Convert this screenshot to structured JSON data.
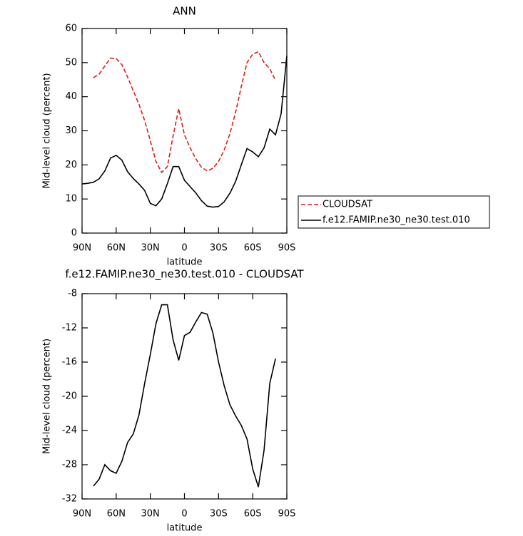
{
  "chart_data": [
    {
      "type": "line",
      "title": "ANN",
      "xlabel": "latitude",
      "ylabel": "Mid-level cloud (percent)",
      "x": [
        90,
        85,
        80,
        75,
        70,
        65,
        60,
        55,
        50,
        45,
        40,
        35,
        30,
        25,
        20,
        15,
        10,
        5,
        0,
        -5,
        -10,
        -15,
        -20,
        -25,
        -30,
        -35,
        -40,
        -45,
        -50,
        -55,
        -60,
        -65,
        -70,
        -75,
        -80,
        -85,
        -90
      ],
      "xlim": [
        90,
        -90
      ],
      "xticks": [
        {
          "value": 90,
          "label": "90N"
        },
        {
          "value": 60,
          "label": "60N"
        },
        {
          "value": 30,
          "label": "30N"
        },
        0,
        {
          "value": -30,
          "label": "30S"
        },
        {
          "value": -60,
          "label": "60S"
        },
        {
          "value": -90,
          "label": "90S"
        }
      ],
      "ylim": [
        0,
        60
      ],
      "yticks": [
        0,
        10,
        20,
        30,
        40,
        50,
        60
      ],
      "legend": "right",
      "series": [
        {
          "name": "CLOUDSAT",
          "color": "#e41a1c",
          "dashed": true,
          "values": [
            null,
            null,
            45.6,
            46.6,
            49,
            51.3,
            51.2,
            49.4,
            45.8,
            41.7,
            37.8,
            33,
            27.1,
            21,
            17.8,
            19.5,
            28.5,
            36.5,
            28.8,
            25,
            21.8,
            19.3,
            18.2,
            19,
            21,
            24.4,
            29.2,
            35.5,
            43,
            50,
            52.5,
            53.2,
            50,
            48.2,
            44.8,
            null,
            null
          ]
        },
        {
          "name": "f.e12.FAMIP.ne30_ne30.test.010",
          "color": "#000000",
          "dashed": false,
          "values": [
            14.4,
            14.6,
            14.9,
            15.9,
            18.2,
            22,
            22.8,
            21.4,
            18,
            16,
            14.4,
            12.5,
            8.7,
            8,
            10,
            14.5,
            19.5,
            19.5,
            15.5,
            13.6,
            11.8,
            9.5,
            7.9,
            7.6,
            7.8,
            9.2,
            11.7,
            15.2,
            20,
            24.8,
            23.8,
            22.4,
            25,
            30.5,
            28.8,
            35,
            52
          ]
        }
      ]
    },
    {
      "type": "line",
      "title": "f.e12.FAMIP.ne30_ne30.test.010 - CLOUDSAT",
      "xlabel": "latitude",
      "ylabel": "Mid-level cloud (percent)",
      "x": [
        90,
        85,
        80,
        75,
        70,
        65,
        60,
        55,
        50,
        45,
        40,
        35,
        30,
        25,
        20,
        15,
        10,
        5,
        0,
        -5,
        -10,
        -15,
        -20,
        -25,
        -30,
        -35,
        -40,
        -45,
        -50,
        -55,
        -60,
        -65,
        -70,
        -75,
        -80,
        -85,
        -90
      ],
      "xlim": [
        90,
        -90
      ],
      "xticks": [
        {
          "value": 90,
          "label": "90N"
        },
        {
          "value": 60,
          "label": "60N"
        },
        {
          "value": 30,
          "label": "30N"
        },
        0,
        {
          "value": -30,
          "label": "30S"
        },
        {
          "value": -60,
          "label": "60S"
        },
        {
          "value": -90,
          "label": "90S"
        }
      ],
      "ylim": [
        -32,
        -8
      ],
      "yticks": [
        -32,
        -28,
        -24,
        -20,
        -16,
        -12,
        -8
      ],
      "series": [
        {
          "color": "#000000",
          "dashed": false,
          "values": [
            null,
            null,
            -30.5,
            -29.7,
            -28,
            -28.7,
            -29,
            -27.6,
            -25.4,
            -24.4,
            -22.2,
            -18.5,
            -15.1,
            -11.5,
            -9.3,
            -9.3,
            -13.4,
            -15.8,
            -12.9,
            -12.5,
            -11.3,
            -10.2,
            -10.4,
            -12.6,
            -16,
            -18.8,
            -21,
            -22.3,
            -23.4,
            -25,
            -28.5,
            -30.6,
            -26.3,
            -18.5,
            -15.6,
            null,
            null
          ]
        }
      ]
    }
  ]
}
